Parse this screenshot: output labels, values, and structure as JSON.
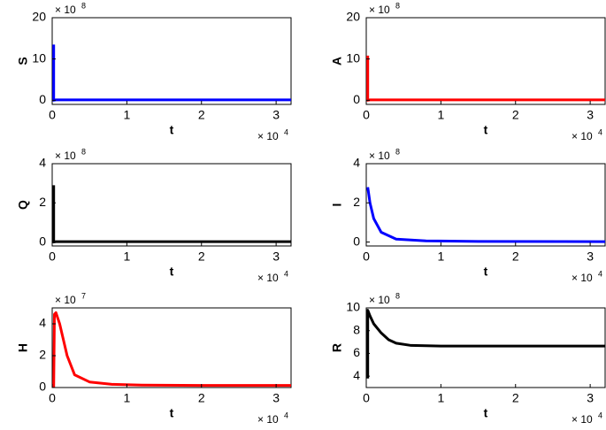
{
  "chart_data": [
    {
      "type": "line",
      "ylabel": "S",
      "xlabel": "t",
      "color": "#0000ff",
      "x": [
        0.02,
        0.02,
        0.05,
        3.2
      ],
      "values": [
        13.5,
        0,
        0.1,
        0.1
      ],
      "xlim": [
        0,
        3.2
      ],
      "xticks": [
        0,
        1,
        2,
        3
      ],
      "ylim": [
        -1,
        20
      ],
      "yticks": [
        0,
        10,
        20
      ],
      "y_scale": {
        "base": "× 10",
        "exponent": "8"
      },
      "x_scale": {
        "base": "× 10",
        "exponent": "4"
      }
    },
    {
      "type": "line",
      "ylabel": "A",
      "xlabel": "t",
      "color": "#ff0000",
      "x": [
        0.02,
        0.02,
        0.05,
        3.2
      ],
      "values": [
        10.8,
        0,
        0.1,
        0.1
      ],
      "xlim": [
        0,
        3.2
      ],
      "xticks": [
        0,
        1,
        2,
        3
      ],
      "ylim": [
        -1,
        20
      ],
      "yticks": [
        0,
        10,
        20
      ],
      "y_scale": {
        "base": "× 10",
        "exponent": "8"
      },
      "x_scale": {
        "base": "× 10",
        "exponent": "4"
      }
    },
    {
      "type": "line",
      "ylabel": "Q",
      "xlabel": "t",
      "color": "#000000",
      "x": [
        0.02,
        0.02,
        0.05,
        3.2
      ],
      "values": [
        2.9,
        0,
        0.02,
        0.02
      ],
      "xlim": [
        0,
        3.2
      ],
      "xticks": [
        0,
        1,
        2,
        3
      ],
      "ylim": [
        -0.2,
        4
      ],
      "yticks": [
        0,
        2,
        4
      ],
      "y_scale": {
        "base": "× 10",
        "exponent": "8"
      },
      "x_scale": {
        "base": "× 10",
        "exponent": "4"
      }
    },
    {
      "type": "line",
      "ylabel": "I",
      "xlabel": "t",
      "color": "#0000ff",
      "x": [
        0.02,
        0.05,
        0.1,
        0.2,
        0.4,
        0.8,
        1.5,
        3.2
      ],
      "values": [
        2.8,
        2.0,
        1.2,
        0.5,
        0.15,
        0.06,
        0.03,
        0.02
      ],
      "xlim": [
        0,
        3.2
      ],
      "xticks": [
        0,
        1,
        2,
        3
      ],
      "ylim": [
        -0.2,
        4
      ],
      "yticks": [
        0,
        2,
        4
      ],
      "y_scale": {
        "base": "× 10",
        "exponent": "8"
      },
      "x_scale": {
        "base": "× 10",
        "exponent": "4"
      }
    },
    {
      "type": "line",
      "ylabel": "H",
      "xlabel": "t",
      "color": "#ff0000",
      "x": [
        0.02,
        0.03,
        0.05,
        0.1,
        0.2,
        0.3,
        0.5,
        0.8,
        1.2,
        2,
        3.2
      ],
      "values": [
        0,
        4.6,
        4.7,
        4.0,
        2.0,
        0.8,
        0.35,
        0.2,
        0.15,
        0.13,
        0.13
      ],
      "xlim": [
        0,
        3.2
      ],
      "xticks": [
        0,
        1,
        2,
        3
      ],
      "ylim": [
        0,
        5
      ],
      "yticks": [
        0,
        2,
        4
      ],
      "y_scale": {
        "base": "× 10",
        "exponent": "7"
      },
      "x_scale": {
        "base": "× 10",
        "exponent": "4"
      }
    },
    {
      "type": "line",
      "ylabel": "R",
      "xlabel": "t",
      "color": "#000000",
      "x": [
        0.02,
        0.02,
        0.05,
        0.1,
        0.2,
        0.3,
        0.4,
        0.6,
        1,
        3.2
      ],
      "values": [
        3.8,
        9.8,
        9.3,
        8.6,
        7.8,
        7.2,
        6.9,
        6.7,
        6.65,
        6.65
      ],
      "xlim": [
        0,
        3.2
      ],
      "xticks": [
        0,
        1,
        2,
        3
      ],
      "ylim": [
        3,
        10
      ],
      "yticks": [
        4,
        6,
        8,
        10
      ],
      "y_scale": {
        "base": "× 10",
        "exponent": "8"
      },
      "x_scale": {
        "base": "× 10",
        "exponent": "4"
      }
    }
  ]
}
